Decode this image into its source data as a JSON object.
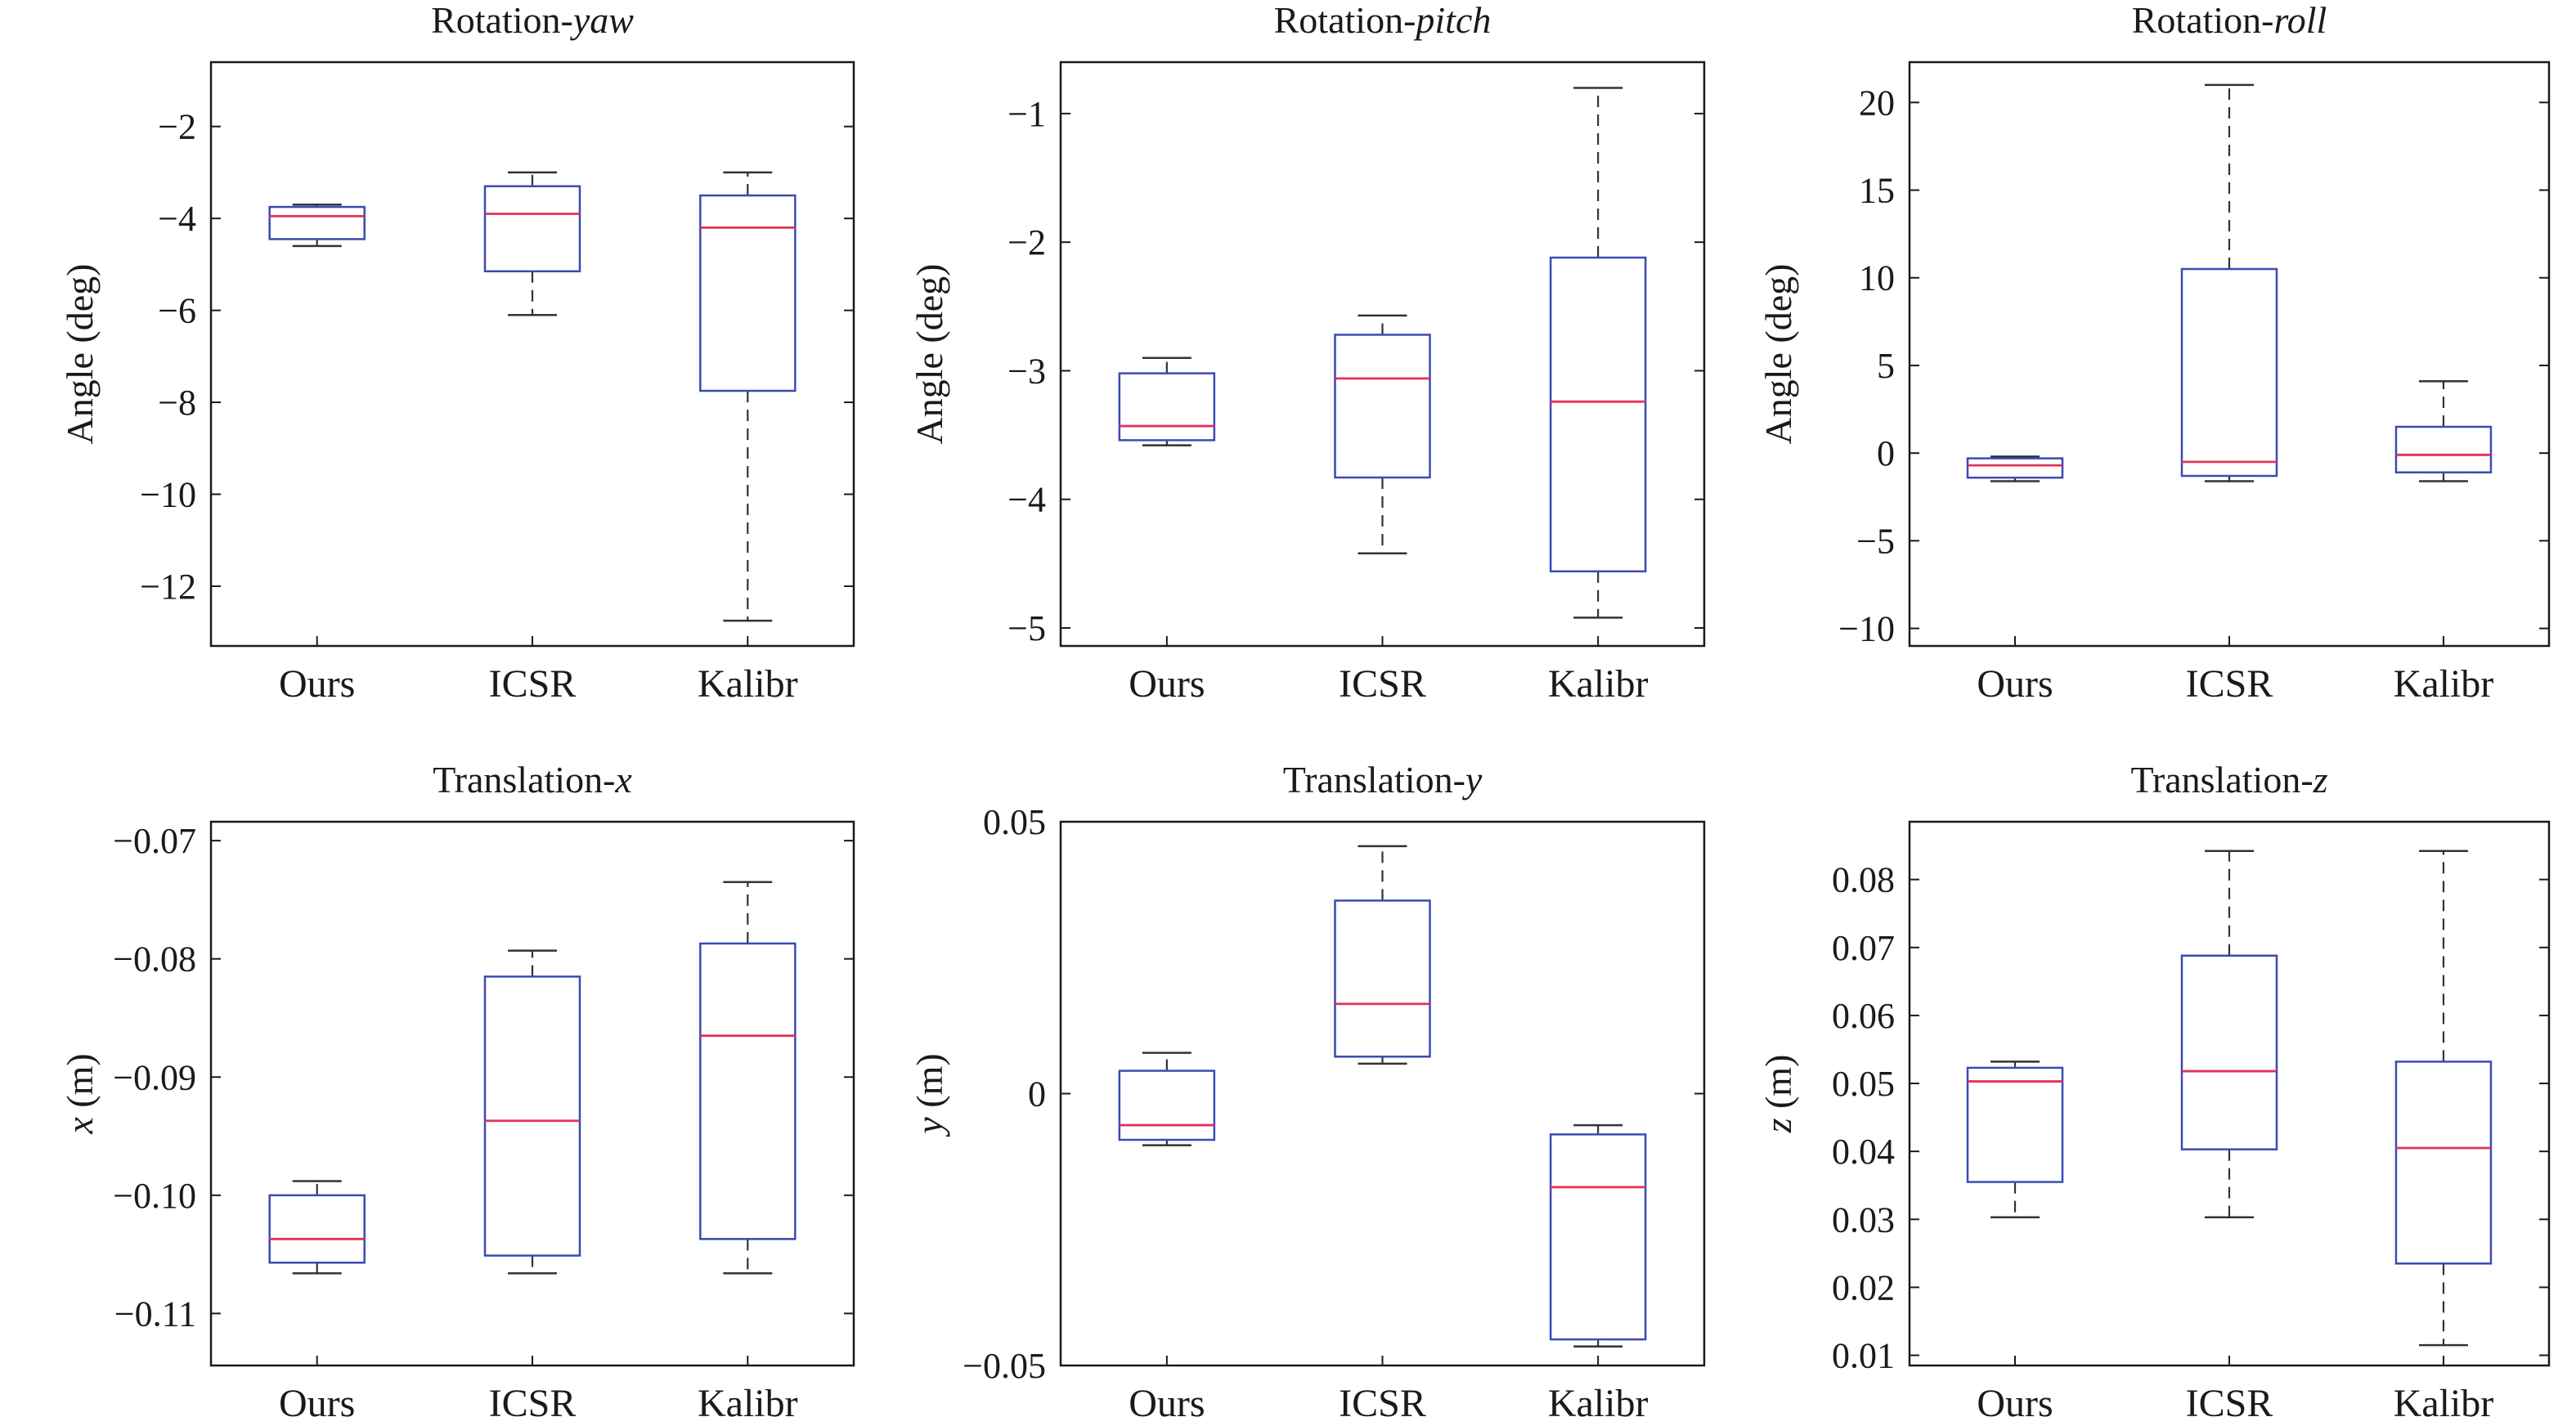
{
  "chart_data": [
    {
      "type": "box",
      "title_main": "Rotation-",
      "title_italic": "yaw",
      "ylabel_italic": "",
      "ylabel_main": "Angle (deg)",
      "categories": [
        "Ours",
        "ICSR",
        "Kalibr"
      ],
      "ylim": [
        -13.3,
        -0.6
      ],
      "yticks": [
        -12,
        -10,
        -8,
        -6,
        -4,
        -2
      ],
      "ytick_labels": [
        "−12",
        "−10",
        "−8",
        "−6",
        "−4",
        "−2"
      ],
      "boxes": [
        {
          "whisker_low": -4.6,
          "q1": -4.45,
          "median": -3.95,
          "q3": -3.75,
          "whisker_high": -3.7
        },
        {
          "whisker_low": -6.1,
          "q1": -5.15,
          "median": -3.9,
          "q3": -3.3,
          "whisker_high": -3.0
        },
        {
          "whisker_low": -12.75,
          "q1": -7.75,
          "median": -4.2,
          "q3": -3.5,
          "whisker_high": -3.0
        }
      ]
    },
    {
      "type": "box",
      "title_main": "Rotation-",
      "title_italic": "pitch",
      "ylabel_italic": "",
      "ylabel_main": "Angle (deg)",
      "categories": [
        "Ours",
        "ICSR",
        "Kalibr"
      ],
      "ylim": [
        -5.14,
        -0.6
      ],
      "yticks": [
        -5,
        -4,
        -3,
        -2,
        -1
      ],
      "ytick_labels": [
        "−5",
        "−4",
        "−3",
        "−2",
        "−1"
      ],
      "boxes": [
        {
          "whisker_low": -3.58,
          "q1": -3.54,
          "median": -3.43,
          "q3": -3.02,
          "whisker_high": -2.9
        },
        {
          "whisker_low": -4.42,
          "q1": -3.83,
          "median": -3.06,
          "q3": -2.72,
          "whisker_high": -2.57
        },
        {
          "whisker_low": -4.92,
          "q1": -4.56,
          "median": -3.24,
          "q3": -2.12,
          "whisker_high": -0.8
        }
      ]
    },
    {
      "type": "box",
      "title_main": "Rotation-",
      "title_italic": "roll",
      "ylabel_italic": "",
      "ylabel_main": "Angle (deg)",
      "categories": [
        "Ours",
        "ICSR",
        "Kalibr"
      ],
      "ylim": [
        -11.0,
        22.3
      ],
      "yticks": [
        -10,
        -5,
        0,
        5,
        10,
        15,
        20
      ],
      "ytick_labels": [
        "−10",
        "−5",
        "0",
        "5",
        "10",
        "15",
        "20"
      ],
      "boxes": [
        {
          "whisker_low": -1.6,
          "q1": -1.4,
          "median": -0.7,
          "q3": -0.3,
          "whisker_high": -0.2
        },
        {
          "whisker_low": -1.6,
          "q1": -1.3,
          "median": -0.5,
          "q3": 10.5,
          "whisker_high": 21.0
        },
        {
          "whisker_low": -1.6,
          "q1": -1.1,
          "median": -0.1,
          "q3": 1.5,
          "whisker_high": 4.1
        }
      ]
    },
    {
      "type": "box",
      "title_main": "Translation-",
      "title_italic": "x",
      "ylabel_italic": "x",
      "ylabel_main": " (m)",
      "categories": [
        "Ours",
        "ICSR",
        "Kalibr"
      ],
      "ylim": [
        -0.1144,
        -0.0684
      ],
      "yticks": [
        -0.11,
        -0.1,
        -0.09,
        -0.08,
        -0.07
      ],
      "ytick_labels": [
        "−0.11",
        "−0.10",
        "−0.09",
        "−0.08",
        "−0.07"
      ],
      "boxes": [
        {
          "whisker_low": -0.1066,
          "q1": -0.1057,
          "median": -0.1037,
          "q3": -0.1,
          "whisker_high": -0.0988
        },
        {
          "whisker_low": -0.1066,
          "q1": -0.1051,
          "median": -0.0937,
          "q3": -0.0815,
          "whisker_high": -0.0793
        },
        {
          "whisker_low": -0.1066,
          "q1": -0.1037,
          "median": -0.0865,
          "q3": -0.0787,
          "whisker_high": -0.0735
        }
      ]
    },
    {
      "type": "box",
      "title_main": "Translation-",
      "title_italic": "y",
      "ylabel_italic": "y",
      "ylabel_main": " (m)",
      "categories": [
        "Ours",
        "ICSR",
        "Kalibr"
      ],
      "ylim": [
        -0.05,
        0.05
      ],
      "yticks": [
        -0.05,
        0,
        0.05
      ],
      "ytick_labels": [
        "−0.05",
        "0",
        "0.05"
      ],
      "boxes": [
        {
          "whisker_low": -0.0095,
          "q1": -0.0085,
          "median": -0.0058,
          "q3": 0.0042,
          "whisker_high": 0.0075
        },
        {
          "whisker_low": 0.0055,
          "q1": 0.0068,
          "median": 0.0165,
          "q3": 0.0355,
          "whisker_high": 0.0455
        },
        {
          "whisker_low": -0.0465,
          "q1": -0.0452,
          "median": -0.0172,
          "q3": -0.0075,
          "whisker_high": -0.0058
        }
      ]
    },
    {
      "type": "box",
      "title_main": "Translation-",
      "title_italic": "z",
      "ylabel_italic": "z",
      "ylabel_main": " (m)",
      "categories": [
        "Ours",
        "ICSR",
        "Kalibr"
      ],
      "ylim": [
        0.0085,
        0.0885
      ],
      "yticks": [
        0.01,
        0.02,
        0.03,
        0.04,
        0.05,
        0.06,
        0.07,
        0.08
      ],
      "ytick_labels": [
        "0.01",
        "0.02",
        "0.03",
        "0.04",
        "0.05",
        "0.06",
        "0.07",
        "0.08"
      ],
      "boxes": [
        {
          "whisker_low": 0.0303,
          "q1": 0.0355,
          "median": 0.0503,
          "q3": 0.0523,
          "whisker_high": 0.0532
        },
        {
          "whisker_low": 0.0303,
          "q1": 0.0403,
          "median": 0.0518,
          "q3": 0.0688,
          "whisker_high": 0.0842
        },
        {
          "whisker_low": 0.0115,
          "q1": 0.0235,
          "median": 0.0405,
          "q3": 0.0532,
          "whisker_high": 0.0842
        }
      ]
    }
  ],
  "colors": {
    "box_edge": "#3a4bb3",
    "median": "#e2325a",
    "whisker": "#333333",
    "axis": "#1a1a1a"
  }
}
